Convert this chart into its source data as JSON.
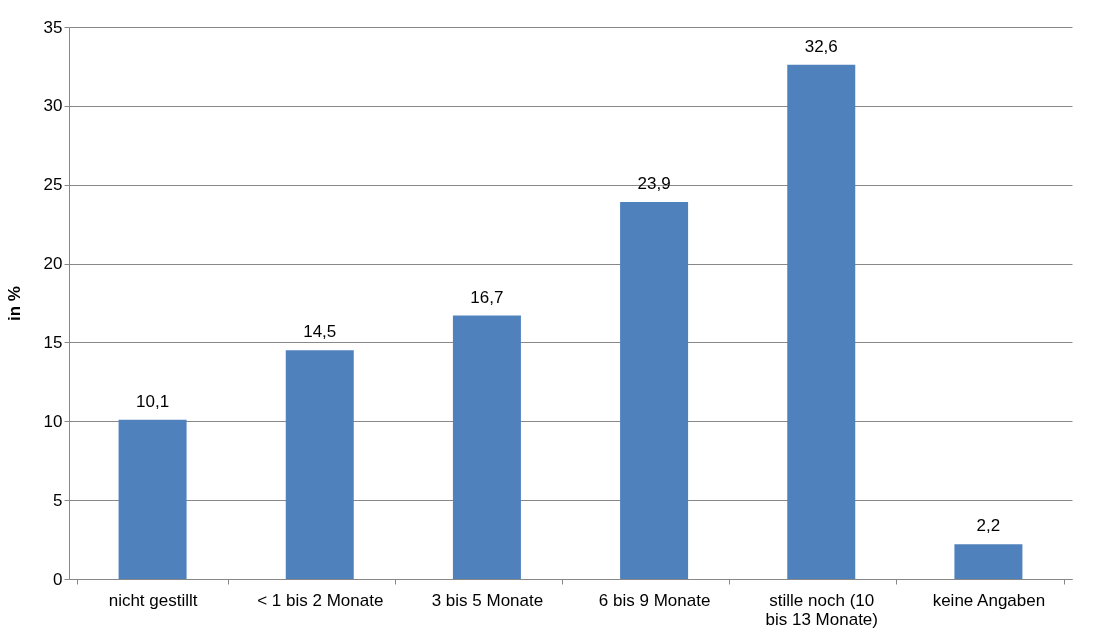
{
  "chart_data": {
    "type": "bar",
    "ylabel": "in %",
    "categories": [
      "nicht gestillt",
      "< 1 bis 2 Monate",
      "3 bis 5 Monate",
      "6 bis 9 Monate",
      "stille noch (10 bis 13 Monate)",
      "keine Angaben"
    ],
    "values": [
      10.1,
      14.5,
      16.7,
      23.9,
      32.6,
      2.2
    ],
    "value_labels": [
      "10,1",
      "14,5",
      "16,7",
      "23,9",
      "32,6",
      "2,2"
    ],
    "color": "#4f81bd",
    "ylim": [
      0,
      35
    ],
    "yticks": [
      0,
      5,
      10,
      15,
      20,
      25,
      30,
      35
    ],
    "grid": "y"
  }
}
